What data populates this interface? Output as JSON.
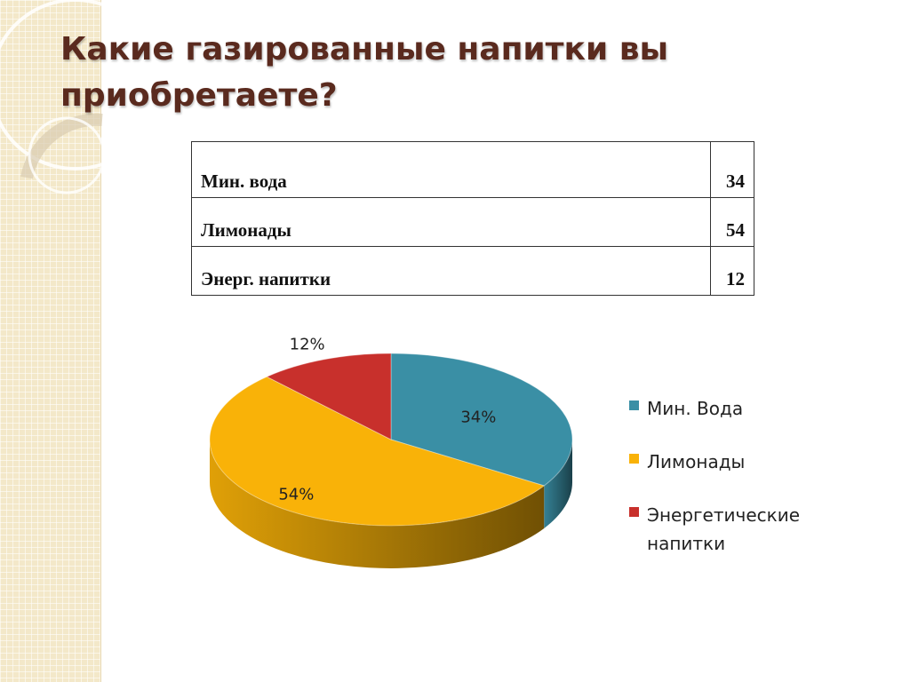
{
  "slide": {
    "title": "Какие газированные напитки вы приобретаете?"
  },
  "table": {
    "rows": [
      {
        "label": "Мин. вода",
        "value": "34"
      },
      {
        "label": "Лимонады",
        "value": "54"
      },
      {
        "label": "Энерг. напитки",
        "value": "12"
      }
    ]
  },
  "chart_data": {
    "type": "pie",
    "style": "3d",
    "title": "",
    "categories": [
      "Мин. Вода",
      "Лимонады",
      "Энергетические напитки"
    ],
    "values": [
      34,
      54,
      12
    ],
    "labels": [
      "34%",
      "54%",
      "12%"
    ],
    "colors": [
      "#3a8fa5",
      "#f9b208",
      "#c8302c"
    ],
    "legend_position": "right"
  },
  "legend": {
    "items": [
      {
        "label": "Мин. Вода",
        "color": "#3a8fa5"
      },
      {
        "label": "Лимонады",
        "color": "#f9b208"
      },
      {
        "label": "Энергетические напитки",
        "color": "#c8302c"
      }
    ]
  }
}
